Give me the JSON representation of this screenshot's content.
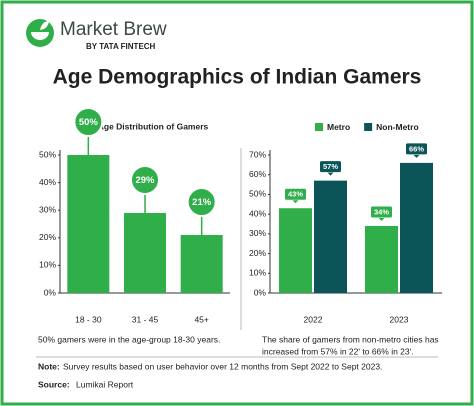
{
  "brand": "Market Brew",
  "brand_sub": "BY TATA FINTECH",
  "title": "Age Demographics of Indian Gamers",
  "chart_data": [
    {
      "type": "bar",
      "title": "Age Distribution of Gamers",
      "categories": [
        "18 - 30",
        "31 - 45",
        "45+"
      ],
      "values": [
        50,
        29,
        21
      ],
      "value_labels": [
        "50%",
        "29%",
        "21%"
      ],
      "color": "#2fae4a",
      "ylim": [
        0,
        50
      ],
      "yticks": [
        {
          "value": 0,
          "label": "0%"
        },
        {
          "value": 10,
          "label": "10%"
        },
        {
          "value": 20,
          "label": "20%"
        },
        {
          "value": 30,
          "label": "30%"
        },
        {
          "value": 40,
          "label": "40%"
        },
        {
          "value": 50,
          "label": "50%"
        }
      ],
      "caption": "50% gamers were in the age-group 18-30 years."
    },
    {
      "type": "bar",
      "categories": [
        "2022",
        "2023"
      ],
      "series": [
        {
          "name": "Metro",
          "color": "#2fae4a",
          "values": [
            43,
            34
          ],
          "value_labels": [
            "43%",
            "34%"
          ]
        },
        {
          "name": "Non-Metro",
          "color": "#0b5559",
          "values": [
            57,
            66
          ],
          "value_labels": [
            "57%",
            "66%"
          ]
        }
      ],
      "legend": "top",
      "ylim": [
        0,
        70
      ],
      "yticks": [
        {
          "value": 0,
          "label": "0%"
        },
        {
          "value": 10,
          "label": "10%"
        },
        {
          "value": 20,
          "label": "20%"
        },
        {
          "value": 30,
          "label": "30%"
        },
        {
          "value": 40,
          "label": "40%"
        },
        {
          "value": 50,
          "label": "50%"
        },
        {
          "value": 60,
          "label": "60%"
        },
        {
          "value": 70,
          "label": "70%"
        }
      ],
      "caption": [
        "The share of gamers from non-metro cities has",
        "increased from 57% in 22' to 66% in 23'."
      ]
    }
  ],
  "note_label": "Note:",
  "note": "Survey results based on user behavior over 12 months from Sept 2022 to Sept 2023.",
  "source_label": "Source:",
  "source": "Lumikai Report"
}
